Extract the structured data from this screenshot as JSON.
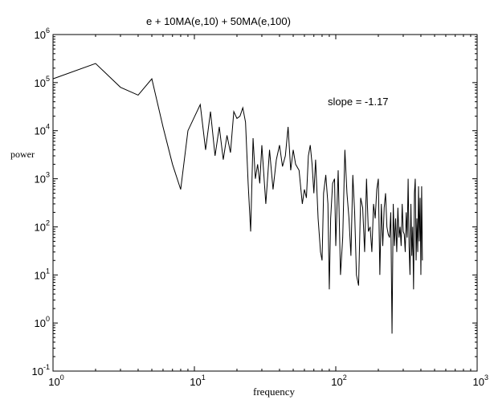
{
  "chart_data": {
    "type": "line",
    "title": "e + 10MA(e,10) + 50MA(e,100)",
    "xlabel": "frequency",
    "ylabel": "power",
    "xscale": "log",
    "yscale": "log",
    "xlim": [
      1,
      1000
    ],
    "ylim": [
      0.1,
      1000000
    ],
    "x_ticks": [
      {
        "value": 1,
        "base": "10",
        "exp": "0"
      },
      {
        "value": 10,
        "base": "10",
        "exp": "1"
      },
      {
        "value": 100,
        "base": "10",
        "exp": "2"
      },
      {
        "value": 1000,
        "base": "10",
        "exp": "3"
      }
    ],
    "y_ticks": [
      {
        "value": 0.1,
        "base": "10",
        "exp": "-1"
      },
      {
        "value": 1,
        "base": "10",
        "exp": "0"
      },
      {
        "value": 10,
        "base": "10",
        "exp": "1"
      },
      {
        "value": 100,
        "base": "10",
        "exp": "2"
      },
      {
        "value": 1000,
        "base": "10",
        "exp": "3"
      },
      {
        "value": 10000,
        "base": "10",
        "exp": "4"
      },
      {
        "value": 100000,
        "base": "10",
        "exp": "5"
      },
      {
        "value": 1000000,
        "base": "10",
        "exp": "6"
      }
    ],
    "annotation": "slope =  -1.17",
    "grid": false,
    "line_color": "#000000",
    "series": [
      {
        "points": [
          [
            1,
            120000
          ],
          [
            2,
            250000
          ],
          [
            3,
            80000
          ],
          [
            4,
            55000
          ],
          [
            5,
            120000
          ],
          [
            6,
            12000
          ],
          [
            7,
            2000
          ],
          [
            8,
            600
          ],
          [
            9,
            10000
          ],
          [
            11,
            35000
          ],
          [
            12,
            4000
          ],
          [
            13,
            25000
          ],
          [
            14,
            3000
          ],
          [
            15,
            12000
          ],
          [
            16,
            2500
          ],
          [
            17,
            8000
          ],
          [
            18,
            3500
          ],
          [
            19,
            25000
          ],
          [
            20,
            18000
          ],
          [
            21,
            20000
          ],
          [
            22,
            30000
          ],
          [
            23,
            15000
          ],
          [
            24,
            800
          ],
          [
            25,
            80
          ],
          [
            26,
            7000
          ],
          [
            27,
            1000
          ],
          [
            28,
            2000
          ],
          [
            29,
            800
          ],
          [
            30,
            5000
          ],
          [
            32,
            300
          ],
          [
            34,
            4000
          ],
          [
            36,
            600
          ],
          [
            38,
            2500
          ],
          [
            40,
            5000
          ],
          [
            42,
            1800
          ],
          [
            44,
            3000
          ],
          [
            46,
            12000
          ],
          [
            48,
            1500
          ],
          [
            50,
            4000
          ],
          [
            52,
            2000
          ],
          [
            55,
            1500
          ],
          [
            58,
            300
          ],
          [
            60,
            600
          ],
          [
            62,
            400
          ],
          [
            64,
            3000
          ],
          [
            66,
            5000
          ],
          [
            68,
            2000
          ],
          [
            70,
            500
          ],
          [
            72,
            2500
          ],
          [
            75,
            150
          ],
          [
            78,
            30
          ],
          [
            80,
            20
          ],
          [
            82,
            500
          ],
          [
            85,
            1200
          ],
          [
            88,
            300
          ],
          [
            90,
            5
          ],
          [
            92,
            150
          ],
          [
            95,
            800
          ],
          [
            98,
            1000
          ],
          [
            100,
            40
          ],
          [
            104,
            1500
          ],
          [
            108,
            10
          ],
          [
            112,
            60
          ],
          [
            116,
            4000
          ],
          [
            120,
            500
          ],
          [
            124,
            150
          ],
          [
            128,
            25
          ],
          [
            132,
            1200
          ],
          [
            136,
            200
          ],
          [
            140,
            10
          ],
          [
            145,
            6
          ],
          [
            150,
            400
          ],
          [
            155,
            250
          ],
          [
            160,
            30
          ],
          [
            165,
            1000
          ],
          [
            170,
            80
          ],
          [
            175,
            100
          ],
          [
            180,
            30
          ],
          [
            185,
            300
          ],
          [
            190,
            150
          ],
          [
            195,
            600
          ],
          [
            200,
            1000
          ],
          [
            205,
            10
          ],
          [
            210,
            300
          ],
          [
            215,
            40
          ],
          [
            220,
            250
          ],
          [
            225,
            500
          ],
          [
            230,
            100
          ],
          [
            235,
            70
          ],
          [
            240,
            60
          ],
          [
            245,
            200
          ],
          [
            250,
            0.6
          ],
          [
            255,
            300
          ],
          [
            260,
            40
          ],
          [
            265,
            150
          ],
          [
            270,
            30
          ],
          [
            275,
            250
          ],
          [
            280,
            60
          ],
          [
            285,
            100
          ],
          [
            290,
            40
          ],
          [
            295,
            300
          ],
          [
            300,
            80
          ],
          [
            305,
            70
          ],
          [
            310,
            30
          ],
          [
            315,
            200
          ],
          [
            320,
            60
          ],
          [
            325,
            1000
          ],
          [
            330,
            40
          ],
          [
            335,
            10
          ],
          [
            340,
            300
          ],
          [
            345,
            25
          ],
          [
            350,
            100
          ],
          [
            355,
            5
          ],
          [
            360,
            500
          ],
          [
            365,
            1000
          ],
          [
            370,
            20
          ],
          [
            375,
            150
          ],
          [
            380,
            30
          ],
          [
            385,
            700
          ],
          [
            390,
            50
          ],
          [
            395,
            400
          ],
          [
            400,
            10
          ],
          [
            405,
            700
          ],
          [
            410,
            20
          ]
        ]
      }
    ]
  }
}
